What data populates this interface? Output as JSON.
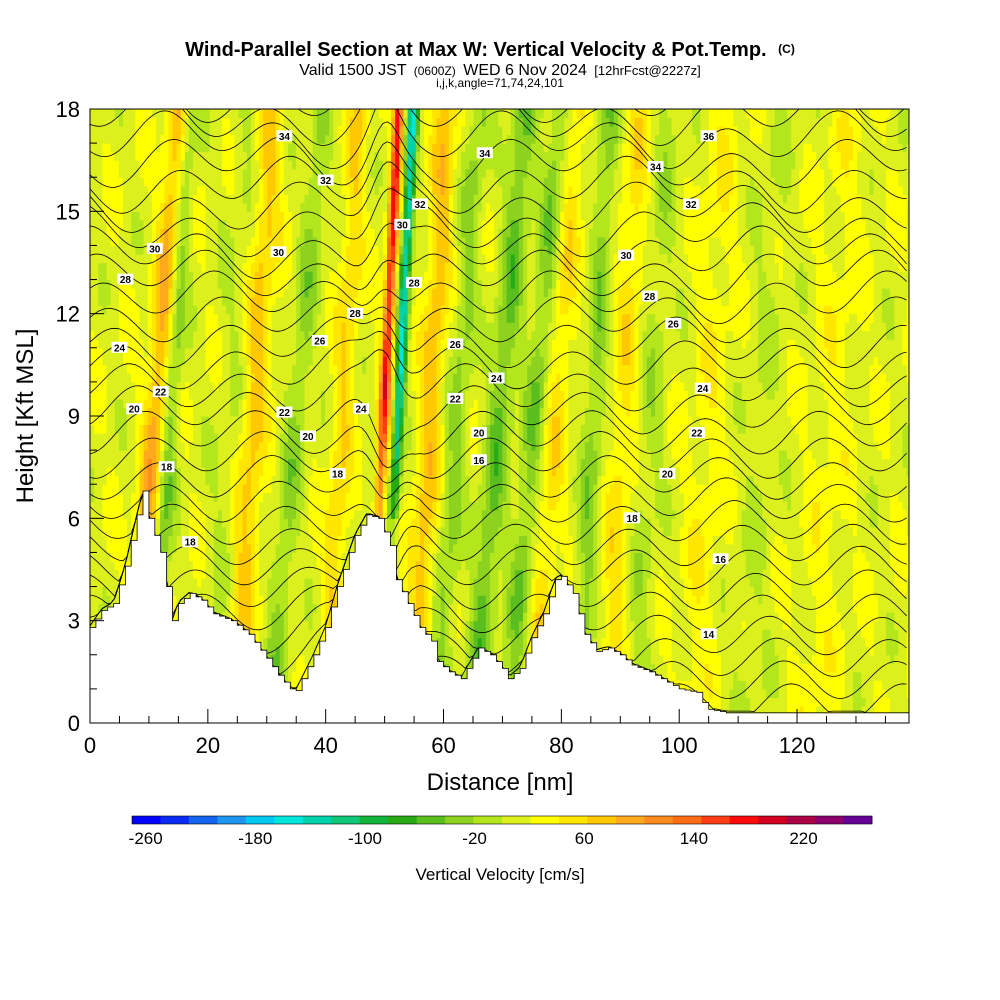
{
  "chart_data": {
    "type": "heatmap",
    "title": "Wind-Parallel Section at Max W: Vertical Velocity & Pot.Temp.",
    "title_mark": "(C)",
    "subtitle": {
      "part1": "Valid 1500 JST",
      "part2": "(0600Z)",
      "part3": "WED 6 Nov 2024",
      "part4": "[12hrFcst@2227z]"
    },
    "subtitle2": "i,j,k,angle=71,74,24,101",
    "xlabel": "Distance [nm]",
    "ylabel": "Height [Kft MSL]",
    "xlim": [
      0,
      139
    ],
    "ylim": [
      0,
      18
    ],
    "x_ticks": [
      "0",
      "20",
      "40",
      "60",
      "80",
      "100",
      "120"
    ],
    "x_tick_values": [
      0,
      20,
      40,
      60,
      80,
      100,
      120
    ],
    "y_ticks": [
      "0",
      "3",
      "6",
      "9",
      "12",
      "15",
      "18"
    ],
    "y_tick_values": [
      0,
      3,
      6,
      9,
      12,
      15,
      18
    ],
    "colorbar": {
      "label": "Vertical Velocity [cm/s]",
      "tick_labels": [
        "-260",
        "-180",
        "-100",
        "-20",
        "60",
        "140",
        "220"
      ],
      "tick_values": [
        -260,
        -180,
        -100,
        -20,
        60,
        140,
        220
      ],
      "range": [
        -270,
        270
      ],
      "colors": [
        "#0000ff",
        "#0a2af5",
        "#1464f0",
        "#1e96f0",
        "#00c8f0",
        "#00e6dc",
        "#00d2aa",
        "#10c878",
        "#14b43c",
        "#28aa14",
        "#5abe1e",
        "#8cd21e",
        "#b4e61e",
        "#dcf01e",
        "#ffff00",
        "#ffe600",
        "#ffc800",
        "#ffaa1e",
        "#ff8c1e",
        "#ff6e14",
        "#ff3c14",
        "#ff0a0a",
        "#d2001e",
        "#aa0046",
        "#8c006e",
        "#640096"
      ]
    },
    "terrain_height_kft": [
      [
        0,
        2.8
      ],
      [
        2,
        3.3
      ],
      [
        4,
        3.5
      ],
      [
        6,
        4.6
      ],
      [
        8,
        6.1
      ],
      [
        9,
        6.8
      ],
      [
        10,
        6.0
      ],
      [
        12,
        5.0
      ],
      [
        13,
        4.0
      ],
      [
        14,
        3.0
      ],
      [
        15,
        3.5
      ],
      [
        17,
        3.8
      ],
      [
        19,
        3.6
      ],
      [
        21,
        3.2
      ],
      [
        24,
        3.0
      ],
      [
        27,
        2.6
      ],
      [
        30,
        1.9
      ],
      [
        32,
        1.4
      ],
      [
        34,
        1.0
      ],
      [
        35,
        0.95
      ],
      [
        36,
        1.3
      ],
      [
        38,
        2.0
      ],
      [
        40,
        2.8
      ],
      [
        42,
        4.0
      ],
      [
        45,
        5.5
      ],
      [
        47,
        6.1
      ],
      [
        49,
        6.0
      ],
      [
        51,
        5.2
      ],
      [
        52,
        4.2
      ],
      [
        54,
        3.5
      ],
      [
        56,
        2.8
      ],
      [
        58,
        2.4
      ],
      [
        59,
        1.8
      ],
      [
        61,
        1.5
      ],
      [
        63,
        1.3
      ],
      [
        64,
        1.6
      ],
      [
        66,
        2.2
      ],
      [
        68,
        2.0
      ],
      [
        70,
        1.6
      ],
      [
        71,
        1.3
      ],
      [
        73,
        1.6
      ],
      [
        75,
        2.5
      ],
      [
        77,
        3.2
      ],
      [
        79,
        4.2
      ],
      [
        80,
        4.3
      ],
      [
        82,
        3.8
      ],
      [
        84,
        2.6
      ],
      [
        86,
        2.1
      ],
      [
        88,
        2.2
      ],
      [
        90,
        2.0
      ],
      [
        92,
        1.7
      ],
      [
        95,
        1.5
      ],
      [
        98,
        1.2
      ],
      [
        100,
        1.0
      ],
      [
        103,
        0.9
      ],
      [
        104,
        0.6
      ],
      [
        105,
        0.4
      ],
      [
        108,
        0.3
      ],
      [
        112,
        0.3
      ],
      [
        139,
        0.3
      ]
    ],
    "w_features": [
      {
        "x": 12.5,
        "y0": 6.0,
        "slope": 0.35,
        "amp": -60,
        "width": 1.6
      },
      {
        "x": 9.5,
        "y0": 5.0,
        "slope": 0.45,
        "amp": 80,
        "width": 2.0
      },
      {
        "x": 22,
        "y0": 3.5,
        "slope": 0.35,
        "amp": -15,
        "width": 2.8
      },
      {
        "x": 26,
        "y0": 4.0,
        "slope": 0.35,
        "amp": 55,
        "width": 2.2
      },
      {
        "x": 33,
        "y0": 5.0,
        "slope": 0.5,
        "amp": -40,
        "width": 2.0
      },
      {
        "x": 42,
        "y0": 6.0,
        "slope": 0.3,
        "amp": 45,
        "width": 1.8
      },
      {
        "x": 49,
        "y0": 6.0,
        "slope": 0.0,
        "amp": 160,
        "width": 0.9
      },
      {
        "x": 51.5,
        "y0": 6.0,
        "slope": 0.0,
        "amp": -160,
        "width": 0.9
      },
      {
        "x": 56,
        "y0": 3.0,
        "slope": 0.3,
        "amp": 60,
        "width": 2.0
      },
      {
        "x": 60,
        "y0": 3.0,
        "slope": 0.4,
        "amp": -40,
        "width": 2.0
      },
      {
        "x": 66,
        "y0": 2.0,
        "slope": 0.5,
        "amp": -60,
        "width": 2.2
      },
      {
        "x": 72,
        "y0": 2.0,
        "slope": 0.5,
        "amp": -50,
        "width": 2.0
      },
      {
        "x": 77,
        "y0": 4.0,
        "slope": 0.4,
        "amp": 40,
        "width": 2.0
      },
      {
        "x": 84,
        "y0": 4.0,
        "slope": 0.3,
        "amp": -45,
        "width": 1.8
      },
      {
        "x": 89,
        "y0": 4.0,
        "slope": 0.3,
        "amp": 35,
        "width": 2.4
      },
      {
        "x": 94,
        "y0": 6.0,
        "slope": 0.35,
        "amp": -25,
        "width": 2.5
      },
      {
        "x": 104,
        "y0": 6.0,
        "slope": 0.3,
        "amp": 20,
        "width": 3.0
      },
      {
        "x": 113,
        "y0": 6.0,
        "slope": 0.3,
        "amp": -15,
        "width": 3.0
      },
      {
        "x": 125,
        "y0": 6.0,
        "slope": 0.3,
        "amp": 15,
        "width": 3.5
      }
    ],
    "theta_contour_labels": [
      {
        "text": "34",
        "x": 33,
        "y": 17.2
      },
      {
        "text": "32",
        "x": 40,
        "y": 15.9
      },
      {
        "text": "30",
        "x": 11,
        "y": 13.9
      },
      {
        "text": "30",
        "x": 32,
        "y": 13.8
      },
      {
        "text": "28",
        "x": 6,
        "y": 13.0
      },
      {
        "text": "28",
        "x": 45,
        "y": 12.0
      },
      {
        "text": "26",
        "x": 39,
        "y": 11.2
      },
      {
        "text": "24",
        "x": 5,
        "y": 11.0
      },
      {
        "text": "24",
        "x": 46,
        "y": 9.2
      },
      {
        "text": "22",
        "x": 12,
        "y": 9.7
      },
      {
        "text": "22",
        "x": 33,
        "y": 9.1
      },
      {
        "text": "20",
        "x": 7.5,
        "y": 9.2
      },
      {
        "text": "20",
        "x": 37,
        "y": 8.4
      },
      {
        "text": "18",
        "x": 13,
        "y": 7.5
      },
      {
        "text": "18",
        "x": 42,
        "y": 7.3
      },
      {
        "text": "18",
        "x": 17,
        "y": 5.3
      },
      {
        "text": "34",
        "x": 67,
        "y": 16.7
      },
      {
        "text": "32",
        "x": 56,
        "y": 15.2
      },
      {
        "text": "30",
        "x": 53,
        "y": 14.6
      },
      {
        "text": "28",
        "x": 55,
        "y": 12.9
      },
      {
        "text": "26",
        "x": 62,
        "y": 11.1
      },
      {
        "text": "24",
        "x": 69,
        "y": 10.1
      },
      {
        "text": "22",
        "x": 62,
        "y": 9.5
      },
      {
        "text": "20",
        "x": 66,
        "y": 8.5
      },
      {
        "text": "16",
        "x": 66,
        "y": 7.7
      },
      {
        "text": "36",
        "x": 105,
        "y": 17.2
      },
      {
        "text": "34",
        "x": 96,
        "y": 16.3
      },
      {
        "text": "32",
        "x": 102,
        "y": 15.2
      },
      {
        "text": "30",
        "x": 91,
        "y": 13.7
      },
      {
        "text": "28",
        "x": 95,
        "y": 12.5
      },
      {
        "text": "26",
        "x": 99,
        "y": 11.7
      },
      {
        "text": "24",
        "x": 104,
        "y": 9.8
      },
      {
        "text": "22",
        "x": 103,
        "y": 8.5
      },
      {
        "text": "20",
        "x": 98,
        "y": 7.3
      },
      {
        "text": "18",
        "x": 92,
        "y": 6.0
      },
      {
        "text": "16",
        "x": 107,
        "y": 4.8
      },
      {
        "text": "14",
        "x": 105,
        "y": 2.6
      }
    ],
    "grid": false,
    "legend": "bottom"
  }
}
